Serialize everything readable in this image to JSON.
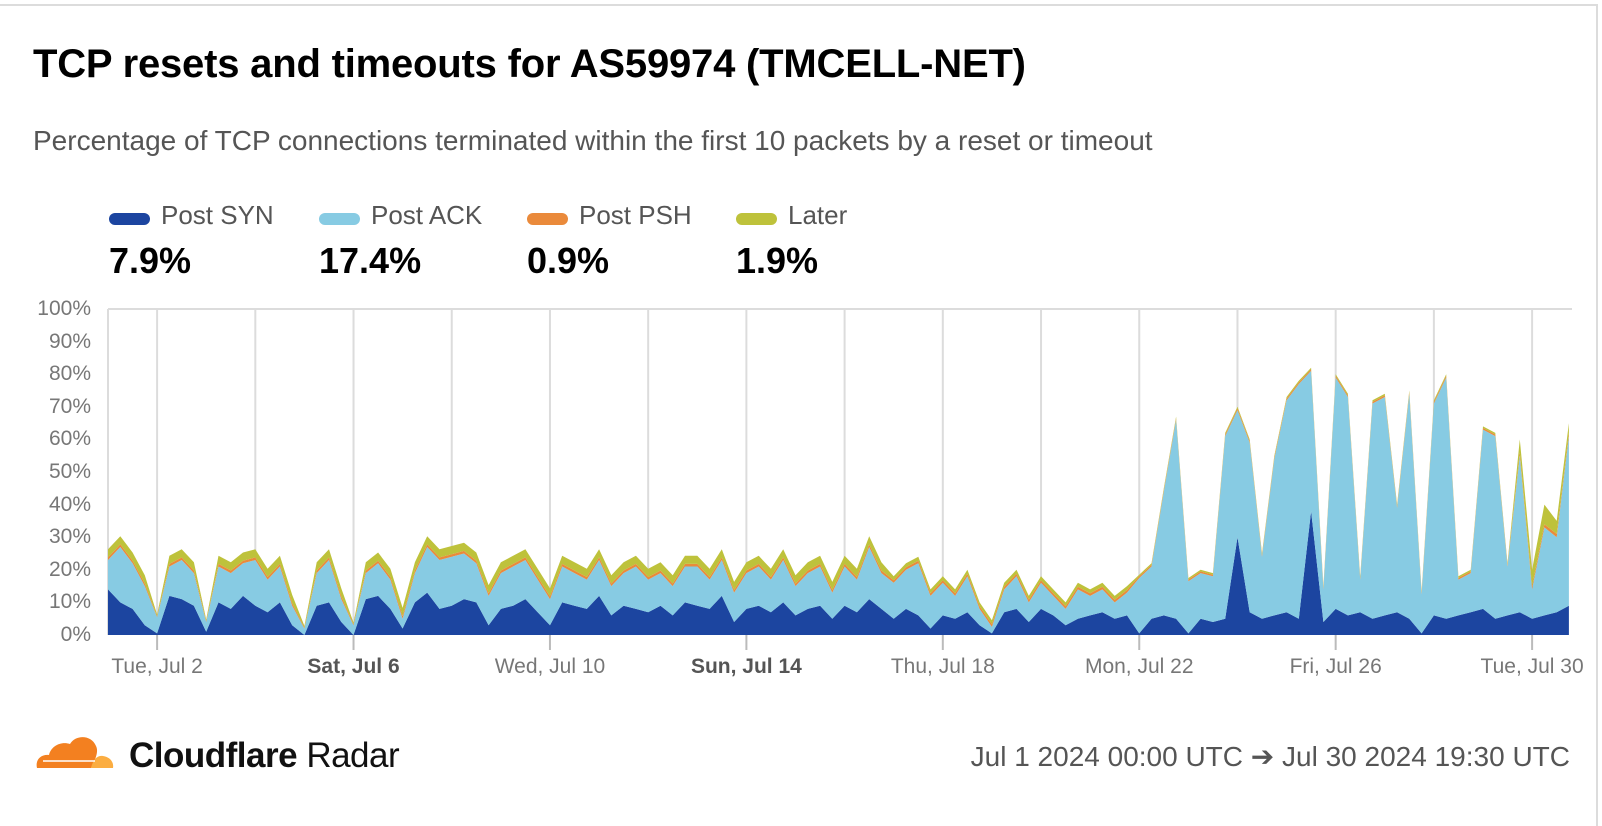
{
  "title": "TCP resets and timeouts for AS59974 (TMCELL-NET)",
  "subtitle": "Percentage of TCP connections terminated within the first 10 packets by a reset or timeout",
  "legend": [
    {
      "name": "Post SYN",
      "value": "7.9%",
      "color": "#1c45a0"
    },
    {
      "name": "Post ACK",
      "value": "17.4%",
      "color": "#87cbe3"
    },
    {
      "name": "Post PSH",
      "value": "0.9%",
      "color": "#ea8a3b"
    },
    {
      "name": "Later",
      "value": "1.9%",
      "color": "#bec23b"
    }
  ],
  "footer": {
    "brand_bold": "Cloudflare",
    "brand_light": "Radar",
    "date_range": "Jul 1 2024 00:00 UTC ➔ Jul 30 2024 19:30 UTC"
  },
  "chart_data": {
    "type": "area",
    "stacked": true,
    "title": "TCP resets and timeouts for AS59974 (TMCELL-NET)",
    "xlabel": "",
    "ylabel": "",
    "ylim": [
      0,
      100
    ],
    "xlim": [
      "2024-07-01T00:00",
      "2024-07-30T19:30"
    ],
    "grid": "vertical",
    "legend_position": "top-left",
    "y_ticks": [
      "0%",
      "10%",
      "20%",
      "30%",
      "40%",
      "50%",
      "60%",
      "70%",
      "80%",
      "90%",
      "100%"
    ],
    "x_ticks": [
      {
        "date": "2024-07-02",
        "label": "Tue, Jul 2",
        "bold": false
      },
      {
        "date": "2024-07-06",
        "label": "Sat, Jul 6",
        "bold": true
      },
      {
        "date": "2024-07-10",
        "label": "Wed, Jul 10",
        "bold": false
      },
      {
        "date": "2024-07-14",
        "label": "Sun, Jul 14",
        "bold": true
      },
      {
        "date": "2024-07-18",
        "label": "Thu, Jul 18",
        "bold": false
      },
      {
        "date": "2024-07-22",
        "label": "Mon, Jul 22",
        "bold": false
      },
      {
        "date": "2024-07-26",
        "label": "Fri, Jul 26",
        "bold": false
      },
      {
        "date": "2024-07-30",
        "label": "Tue, Jul 30",
        "bold": false
      }
    ],
    "x": [
      "2024-07-01T00:00",
      "2024-07-01T06:00",
      "2024-07-01T12:00",
      "2024-07-01T18:00",
      "2024-07-02T00:00",
      "2024-07-02T06:00",
      "2024-07-02T12:00",
      "2024-07-02T18:00",
      "2024-07-03T00:00",
      "2024-07-03T06:00",
      "2024-07-03T12:00",
      "2024-07-03T18:00",
      "2024-07-04T00:00",
      "2024-07-04T06:00",
      "2024-07-04T12:00",
      "2024-07-04T18:00",
      "2024-07-05T00:00",
      "2024-07-05T06:00",
      "2024-07-05T12:00",
      "2024-07-05T18:00",
      "2024-07-06T00:00",
      "2024-07-06T06:00",
      "2024-07-06T12:00",
      "2024-07-06T18:00",
      "2024-07-07T00:00",
      "2024-07-07T06:00",
      "2024-07-07T12:00",
      "2024-07-07T18:00",
      "2024-07-08T00:00",
      "2024-07-08T06:00",
      "2024-07-08T12:00",
      "2024-07-08T18:00",
      "2024-07-09T00:00",
      "2024-07-09T06:00",
      "2024-07-09T12:00",
      "2024-07-09T18:00",
      "2024-07-10T00:00",
      "2024-07-10T06:00",
      "2024-07-10T12:00",
      "2024-07-10T18:00",
      "2024-07-11T00:00",
      "2024-07-11T06:00",
      "2024-07-11T12:00",
      "2024-07-11T18:00",
      "2024-07-12T00:00",
      "2024-07-12T06:00",
      "2024-07-12T12:00",
      "2024-07-12T18:00",
      "2024-07-13T00:00",
      "2024-07-13T06:00",
      "2024-07-13T12:00",
      "2024-07-13T18:00",
      "2024-07-14T00:00",
      "2024-07-14T06:00",
      "2024-07-14T12:00",
      "2024-07-14T18:00",
      "2024-07-15T00:00",
      "2024-07-15T06:00",
      "2024-07-15T12:00",
      "2024-07-15T18:00",
      "2024-07-16T00:00",
      "2024-07-16T06:00",
      "2024-07-16T12:00",
      "2024-07-16T18:00",
      "2024-07-17T00:00",
      "2024-07-17T06:00",
      "2024-07-17T12:00",
      "2024-07-17T18:00",
      "2024-07-18T00:00",
      "2024-07-18T06:00",
      "2024-07-18T12:00",
      "2024-07-18T18:00",
      "2024-07-19T00:00",
      "2024-07-19T06:00",
      "2024-07-19T12:00",
      "2024-07-19T18:00",
      "2024-07-20T00:00",
      "2024-07-20T06:00",
      "2024-07-20T12:00",
      "2024-07-20T18:00",
      "2024-07-21T00:00",
      "2024-07-21T06:00",
      "2024-07-21T12:00",
      "2024-07-21T18:00",
      "2024-07-22T00:00",
      "2024-07-22T06:00",
      "2024-07-22T12:00",
      "2024-07-22T18:00",
      "2024-07-23T00:00",
      "2024-07-23T06:00",
      "2024-07-23T12:00",
      "2024-07-23T18:00",
      "2024-07-24T00:00",
      "2024-07-24T06:00",
      "2024-07-24T12:00",
      "2024-07-24T18:00",
      "2024-07-25T00:00",
      "2024-07-25T06:00",
      "2024-07-25T12:00",
      "2024-07-25T18:00",
      "2024-07-26T00:00",
      "2024-07-26T06:00",
      "2024-07-26T12:00",
      "2024-07-26T18:00",
      "2024-07-27T00:00",
      "2024-07-27T06:00",
      "2024-07-27T12:00",
      "2024-07-27T18:00",
      "2024-07-28T00:00",
      "2024-07-28T06:00",
      "2024-07-28T12:00",
      "2024-07-28T18:00",
      "2024-07-29T00:00",
      "2024-07-29T06:00",
      "2024-07-29T12:00",
      "2024-07-29T18:00",
      "2024-07-30T00:00",
      "2024-07-30T06:00",
      "2024-07-30T12:00",
      "2024-07-30T18:00"
    ],
    "series": [
      {
        "name": "Post SYN",
        "color": "#1c45a0",
        "values": [
          14,
          10,
          8,
          3,
          0.5,
          12,
          11,
          9,
          1,
          10,
          8,
          12,
          9,
          7,
          10,
          3,
          0,
          9,
          10,
          4,
          0,
          11,
          12,
          8,
          2,
          10,
          13,
          8,
          9,
          11,
          10,
          3,
          8,
          9,
          11,
          7,
          3,
          10,
          9,
          8,
          12,
          6,
          9,
          8,
          7,
          9,
          6,
          10,
          9,
          8,
          12,
          4,
          8,
          9,
          7,
          10,
          6,
          8,
          9,
          5,
          9,
          7,
          11,
          8,
          5,
          8,
          6,
          2,
          6,
          5,
          7,
          3,
          0.5,
          7,
          8,
          4,
          8,
          6,
          3,
          5,
          6,
          7,
          5,
          6,
          0.5,
          5,
          6,
          5,
          0.5,
          5,
          4,
          5,
          30,
          7,
          5,
          6,
          7,
          5,
          38,
          4,
          8,
          6,
          7,
          5,
          6,
          7,
          5,
          0.5,
          6,
          5,
          6,
          7,
          8,
          5,
          6,
          7,
          5,
          6,
          7,
          9
        ]
      },
      {
        "name": "Post ACK",
        "color": "#87cbe3",
        "values": [
          9,
          17,
          14,
          12,
          5,
          9,
          12,
          10,
          3,
          11,
          11,
          10,
          14,
          10,
          11,
          6,
          2,
          10,
          13,
          7,
          3,
          8,
          10,
          9,
          3,
          9,
          14,
          15,
          15,
          14,
          12,
          9,
          11,
          12,
          12,
          10,
          8,
          11,
          10,
          9,
          11,
          9,
          10,
          13,
          10,
          10,
          9,
          11,
          12,
          9,
          11,
          9,
          11,
          12,
          10,
          13,
          9,
          11,
          12,
          8,
          12,
          10,
          16,
          11,
          11,
          12,
          16,
          10,
          10,
          7,
          11,
          5,
          2,
          7,
          10,
          6,
          8,
          6,
          5,
          9,
          6,
          7,
          5,
          7,
          17,
          16,
          38,
          61,
          16,
          14,
          14,
          56,
          39,
          52,
          19,
          48,
          65,
          72,
          43,
          10,
          71,
          67,
          10,
          66,
          67,
          32,
          69,
          12,
          65,
          74,
          11,
          12,
          55,
          56,
          15,
          48,
          9,
          27,
          23,
          52
        ]
      },
      {
        "name": "Post PSH",
        "color": "#ea8a3b",
        "values": [
          0.8,
          0.8,
          0.8,
          0.8,
          0.3,
          0.8,
          0.8,
          0.8,
          0.3,
          0.8,
          0.8,
          0.8,
          0.8,
          0.8,
          0.8,
          0.8,
          0.3,
          0.8,
          0.8,
          0.8,
          0.3,
          0.8,
          0.8,
          0.8,
          0.8,
          0.8,
          0.8,
          0.8,
          0.8,
          0.8,
          0.8,
          0.8,
          0.8,
          0.8,
          0.8,
          0.8,
          0.8,
          0.8,
          0.8,
          0.8,
          0.8,
          0.8,
          0.8,
          0.8,
          0.8,
          0.8,
          0.8,
          0.8,
          0.8,
          0.8,
          0.8,
          0.8,
          0.8,
          0.8,
          0.8,
          0.8,
          0.8,
          0.8,
          0.8,
          0.8,
          0.8,
          0.8,
          0.8,
          0.8,
          0.8,
          0.8,
          0.8,
          0.8,
          0.8,
          0.8,
          0.8,
          0.8,
          0.8,
          0.8,
          0.8,
          0.8,
          0.8,
          0.8,
          0.8,
          0.8,
          0.8,
          0.8,
          0.8,
          0.8,
          0.5,
          0.5,
          0.5,
          0.5,
          0.5,
          0.5,
          0.5,
          0.5,
          0.5,
          0.5,
          0.5,
          0.5,
          0.5,
          0.5,
          0.5,
          0.5,
          0.5,
          0.5,
          0.5,
          0.5,
          0.5,
          0.5,
          0.5,
          0.5,
          0.5,
          0.5,
          0.5,
          0.5,
          0.5,
          0.5,
          0.5,
          1,
          1,
          1,
          1,
          1
        ]
      },
      {
        "name": "Later",
        "color": "#bec23b",
        "values": [
          2.5,
          2.5,
          2.5,
          2.5,
          0.5,
          2.5,
          2.5,
          2.5,
          0.5,
          2.5,
          2.5,
          2.5,
          2.5,
          2.5,
          2.5,
          2.5,
          0.5,
          2.5,
          2.5,
          2.5,
          0.5,
          2.5,
          2.5,
          2.5,
          2.5,
          2.5,
          2.5,
          2.5,
          2.5,
          2.5,
          2.5,
          2.5,
          2.5,
          2.5,
          2.5,
          2.5,
          2.5,
          2.5,
          2.5,
          2.5,
          2.5,
          2.5,
          2.5,
          2.5,
          2.5,
          2.5,
          2.5,
          2.5,
          2.5,
          2.5,
          2.5,
          2.5,
          2.5,
          2.5,
          2.5,
          2.5,
          2.5,
          2.5,
          2.5,
          2.5,
          2.5,
          2.5,
          2.5,
          2.5,
          1.2,
          1.2,
          1.2,
          1.2,
          1.2,
          1.2,
          1.2,
          1.2,
          1.2,
          1.2,
          1.2,
          1.2,
          1.2,
          1.2,
          1.2,
          1.2,
          1.2,
          1.2,
          1.2,
          1.2,
          0.5,
          0.5,
          0.5,
          0.5,
          0.5,
          0.5,
          0.5,
          0.5,
          0.5,
          0.5,
          0.5,
          0.5,
          0.5,
          0.5,
          0.5,
          0.5,
          0.5,
          0.5,
          0.5,
          0.5,
          0.5,
          0.5,
          0.5,
          0.5,
          0.5,
          0.5,
          0.5,
          0.5,
          0.5,
          0.5,
          0.5,
          4,
          5,
          6,
          4,
          3
        ]
      }
    ]
  }
}
